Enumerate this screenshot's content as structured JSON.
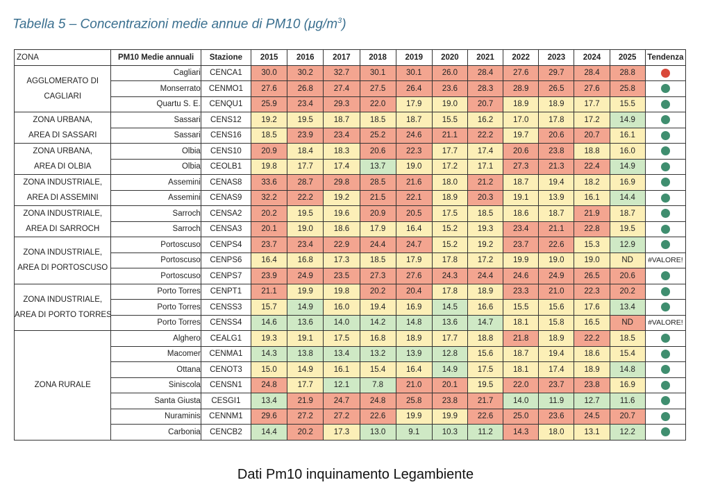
{
  "title_main": "Tabella 5 – Concentrazioni medie annue di PM10 (μg/m",
  "title_sup": "3",
  "title_end": ")",
  "caption": "Dati Pm10 inquinamento Legambiente",
  "headers": {
    "zona": "ZONA",
    "city": "PM10 Medie annuali",
    "station": "Stazione",
    "years": [
      "2015",
      "2016",
      "2017",
      "2018",
      "2019",
      "2020",
      "2021",
      "2022",
      "2023",
      "2024",
      "2025"
    ],
    "trend": "Tendenza"
  },
  "colors": {
    "red": "#f3a590",
    "yellow": "#fcefb7",
    "green": "#cfe9c5",
    "dot_red": "#d9493a",
    "dot_green": "#3f8e6f"
  },
  "zones": [
    {
      "line1": "AGGLOMERATO DI",
      "line2": "CAGLIARI",
      "span": 3
    },
    {
      "line1": "ZONA URBANA,",
      "line2": "AREA DI SASSARI",
      "span": 2
    },
    {
      "line1": "ZONA URBANA,",
      "line2": "AREA DI OLBIA",
      "span": 2
    },
    {
      "line1": "ZONA INDUSTRIALE,",
      "line2": "AREA DI ASSEMINI",
      "span": 2
    },
    {
      "line1": "ZONA INDUSTRIALE,",
      "line2": "AREA DI SARROCH",
      "span": 2
    },
    {
      "line1": "ZONA INDUSTRIALE,",
      "line2": "AREA DI PORTOSCUSO",
      "span": 3
    },
    {
      "line1": "ZONA INDUSTRIALE,",
      "line2": "AREA DI PORTO TORRES",
      "span": 3
    },
    {
      "line1": "ZONA RURALE",
      "line2": "",
      "span": 7
    }
  ],
  "rows": [
    {
      "city": "Cagliari",
      "station": "CENCA1",
      "values": [
        "30.0",
        "30.2",
        "32.7",
        "30.1",
        "30.1",
        "26.0",
        "28.4",
        "27.6",
        "29.7",
        "28.4",
        "28.8"
      ],
      "c": "rrrrrrrrrrr",
      "trend": "red"
    },
    {
      "city": "Monserrato",
      "station": "CENMO1",
      "values": [
        "27.6",
        "26.8",
        "27.4",
        "27.5",
        "26.4",
        "23.6",
        "28.3",
        "28.9",
        "26.5",
        "27.6",
        "25.8"
      ],
      "c": "rrrrrrrrrrr",
      "trend": "green"
    },
    {
      "city": "Quartu S. E.",
      "station": "CENQU1",
      "values": [
        "25.9",
        "23.4",
        "29.3",
        "22.0",
        "17.9",
        "19.0",
        "20.7",
        "18.9",
        "18.9",
        "17.7",
        "15.5"
      ],
      "c": "rrrryyryyyy",
      "trend": "green"
    },
    {
      "city": "Sassari",
      "station": "CENS12",
      "values": [
        "19.2",
        "19.5",
        "18.7",
        "18.5",
        "18.7",
        "15.5",
        "16.2",
        "17.0",
        "17.8",
        "17.2",
        "14.9"
      ],
      "c": "yyyyyyyyyyg",
      "trend": "green"
    },
    {
      "city": "Sassari",
      "station": "CENS16",
      "values": [
        "18.5",
        "23.9",
        "23.4",
        "25.2",
        "24.6",
        "21.1",
        "22.2",
        "19.7",
        "20.6",
        "20.7",
        "16.1"
      ],
      "c": "yrrrrrryrry",
      "trend": "green"
    },
    {
      "city": "Olbia",
      "station": "CENS10",
      "values": [
        "20.9",
        "18.4",
        "18.3",
        "20.6",
        "22.3",
        "17.7",
        "17.4",
        "20.6",
        "23.8",
        "18.8",
        "16.0"
      ],
      "c": "ryyrryyrryy",
      "trend": "green"
    },
    {
      "city": "Olbia",
      "station": "CEOLB1",
      "values": [
        "19.8",
        "17.7",
        "17.4",
        "13.7",
        "19.0",
        "17.2",
        "17.1",
        "27.3",
        "21.3",
        "22.4",
        "14.9"
      ],
      "c": "yyygyyyrrrg",
      "trend": "green"
    },
    {
      "city": "Assemini",
      "station": "CENAS8",
      "values": [
        "33.6",
        "28.7",
        "29.8",
        "28.5",
        "21.6",
        "18.0",
        "21.2",
        "18.7",
        "19.4",
        "18.2",
        "16.9"
      ],
      "c": "rrrrryryyyy",
      "trend": "green"
    },
    {
      "city": "Assemini",
      "station": "CENAS9",
      "values": [
        "32.2",
        "22.2",
        "19.2",
        "21.5",
        "22.1",
        "18.9",
        "20.3",
        "19.1",
        "13.9",
        "16.1",
        "14.4"
      ],
      "c": "rryrryryyyg",
      "trend": "green"
    },
    {
      "city": "Sarroch",
      "station": "CENSA2",
      "values": [
        "20.2",
        "19.5",
        "19.6",
        "20.9",
        "20.5",
        "17.5",
        "18.5",
        "18.6",
        "18.7",
        "21.9",
        "18.7"
      ],
      "c": "ryyrryyyyry",
      "trend": "green"
    },
    {
      "city": "Sarroch",
      "station": "CENSA3",
      "values": [
        "20.1",
        "19.0",
        "18.6",
        "17.9",
        "16.4",
        "15.2",
        "19.3",
        "23.4",
        "21.1",
        "22.8",
        "19.5"
      ],
      "c": "ryyyyyyrrry",
      "trend": "green"
    },
    {
      "city": "Portoscuso",
      "station": "CENPS4",
      "values": [
        "23.7",
        "23.4",
        "22.9",
        "24.4",
        "24.7",
        "15.2",
        "19.2",
        "23.7",
        "22.6",
        "15.3",
        "12.9"
      ],
      "c": "rrrrryyrryg",
      "trend": "green"
    },
    {
      "city": "Portoscuso",
      "station": "CENPS6",
      "values": [
        "16.4",
        "16.8",
        "17.3",
        "18.5",
        "17.9",
        "17.8",
        "17.2",
        "19.9",
        "19.0",
        "19.0",
        "ND"
      ],
      "c": "yyyyyyyyyyy",
      "trend": "err",
      "trend_text": "#VALORE!"
    },
    {
      "city": "Portoscuso",
      "station": "CENPS7",
      "values": [
        "23.9",
        "24.9",
        "23.5",
        "27.3",
        "27.6",
        "24.3",
        "24.4",
        "24.6",
        "24.9",
        "26.5",
        "20.6"
      ],
      "c": "rrrrrrrrrrr",
      "trend": "green"
    },
    {
      "city": "Porto Torres",
      "station": "CENPT1",
      "values": [
        "21.1",
        "19.9",
        "19.8",
        "20.2",
        "20.4",
        "17.8",
        "18.9",
        "23.3",
        "21.0",
        "22.3",
        "20.2"
      ],
      "c": "ryyrryyrrrr",
      "trend": "green"
    },
    {
      "city": "Porto Torres",
      "station": "CENSS3",
      "values": [
        "15.7",
        "14.9",
        "16.0",
        "19.4",
        "16.9",
        "14.5",
        "16.6",
        "15.5",
        "15.6",
        "17.6",
        "13.4"
      ],
      "c": "ygyyygyyyyg",
      "trend": "green"
    },
    {
      "city": "Porto Torres",
      "station": "CENSS4",
      "values": [
        "14.6",
        "13.6",
        "14.0",
        "14.2",
        "14.8",
        "13.6",
        "14.7",
        "18.1",
        "15.8",
        "16.5",
        "ND"
      ],
      "c": "gggggggyyyr",
      "trend": "err",
      "trend_text": "#VALORE!"
    },
    {
      "city": "Alghero",
      "station": "CEALG1",
      "values": [
        "19.3",
        "19.1",
        "17.5",
        "16.8",
        "18.9",
        "17.7",
        "18.8",
        "21.8",
        "18.9",
        "22.2",
        "18.5"
      ],
      "c": "yyyyyyyryry",
      "trend": "green"
    },
    {
      "city": "Macomer",
      "station": "CENMA1",
      "values": [
        "14.3",
        "13.8",
        "13.4",
        "13.2",
        "13.9",
        "12.8",
        "15.6",
        "18.7",
        "19.4",
        "18.6",
        "15.4"
      ],
      "c": "ggggggyyyyy",
      "trend": "green"
    },
    {
      "city": "Ottana",
      "station": "CENOT3",
      "values": [
        "15.0",
        "14.9",
        "16.1",
        "15.4",
        "16.4",
        "14.9",
        "17.5",
        "18.1",
        "17.4",
        "18.9",
        "14.8"
      ],
      "c": "yyyyygyyyyg",
      "trend": "green"
    },
    {
      "city": "Siniscola",
      "station": "CENSN1",
      "values": [
        "24.8",
        "17.7",
        "12.1",
        "7.8",
        "21.0",
        "20.1",
        "19.5",
        "22.0",
        "23.7",
        "23.8",
        "16.9"
      ],
      "c": "ryggrryrrry",
      "trend": "green"
    },
    {
      "city": "Santa Giusta",
      "station": "CESGI1",
      "values": [
        "13.4",
        "21.9",
        "24.7",
        "24.8",
        "25.8",
        "23.8",
        "21.7",
        "14.0",
        "11.9",
        "12.7",
        "11.6"
      ],
      "c": "grrrrrrgggg",
      "trend": "green"
    },
    {
      "city": "Nuraminis",
      "station": "CENNM1",
      "values": [
        "29.6",
        "27.2",
        "27.2",
        "22.6",
        "19.9",
        "19.9",
        "22.6",
        "25.0",
        "23.6",
        "24.5",
        "20.7"
      ],
      "c": "rrrryyrrrrr",
      "trend": "green"
    },
    {
      "city": "Carbonia",
      "station": "CENCB2",
      "values": [
        "14.4",
        "20.2",
        "17.3",
        "13.0",
        "9.1",
        "10.3",
        "11.2",
        "14.3",
        "18.0",
        "13.1",
        "12.2"
      ],
      "c": "gryggggryyg",
      "trend": "green"
    }
  ]
}
